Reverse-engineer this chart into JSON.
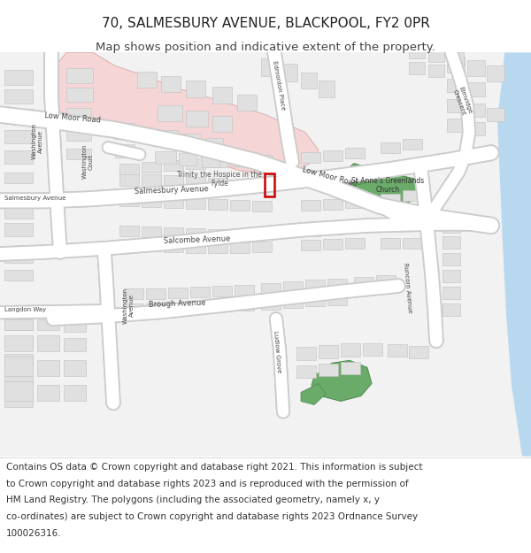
{
  "title_line1": "70, SALMESBURY AVENUE, BLACKPOOL, FY2 0PR",
  "title_line2": "Map shows position and indicative extent of the property.",
  "footer_lines": [
    "Contains OS data © Crown copyright and database right 2021. This information is subject",
    "to Crown copyright and database rights 2023 and is reproduced with the permission of",
    "HM Land Registry. The polygons (including the associated geometry, namely x, y",
    "co-ordinates) are subject to Crown copyright and database rights 2023 Ordnance Survey",
    "100026316."
  ],
  "bg_color": "#ffffff",
  "map_bg": "#f2f2f2",
  "road_color": "#ffffff",
  "road_stroke": "#cccccc",
  "building_color": "#e0e0e0",
  "building_stroke": "#c0c0c0",
  "hospice_fill": "#f5d5d5",
  "hospice_stroke": "#ddb0b0",
  "green_fill": "#6aab6a",
  "green_stroke": "#4a8b4a",
  "water_color": "#b8d8f0",
  "highlight_stroke": "#cc0000",
  "title_fontsize": 11,
  "subtitle_fontsize": 9.5,
  "footer_fontsize": 7.5
}
